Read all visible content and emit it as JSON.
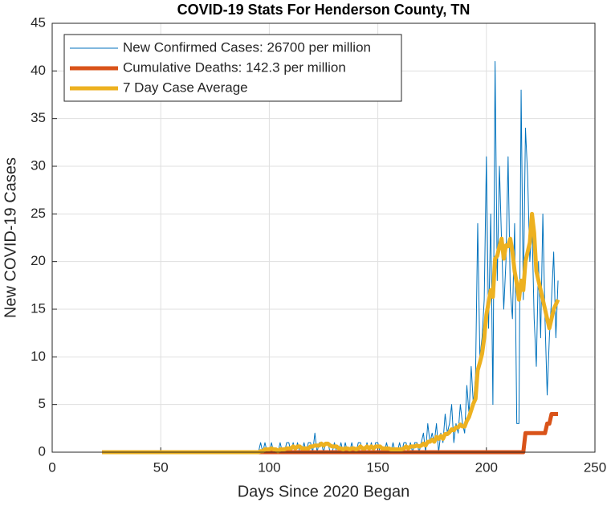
{
  "chart_data": {
    "type": "line",
    "title": "COVID-19 Stats For Henderson County, TN",
    "xlabel": "Days Since 2020 Began",
    "ylabel": "New COVID-19 Cases",
    "xlim": [
      0,
      250
    ],
    "xticks": [
      0,
      50,
      100,
      150,
      200,
      250
    ],
    "ylim": [
      0,
      45
    ],
    "yticks": [
      0,
      5,
      10,
      15,
      20,
      25,
      30,
      35,
      40,
      45
    ],
    "grid": true,
    "legend": "top-left",
    "x": [
      23,
      95,
      96,
      97,
      98,
      99,
      100,
      101,
      102,
      103,
      104,
      105,
      106,
      107,
      108,
      109,
      110,
      111,
      112,
      113,
      114,
      115,
      116,
      117,
      118,
      119,
      120,
      121,
      122,
      123,
      124,
      125,
      126,
      127,
      128,
      129,
      130,
      131,
      132,
      133,
      134,
      135,
      136,
      137,
      138,
      139,
      140,
      141,
      142,
      143,
      144,
      145,
      146,
      147,
      148,
      149,
      150,
      151,
      152,
      153,
      154,
      155,
      156,
      157,
      158,
      159,
      160,
      161,
      162,
      163,
      164,
      165,
      166,
      167,
      168,
      169,
      170,
      171,
      172,
      173,
      174,
      175,
      176,
      177,
      178,
      179,
      180,
      181,
      182,
      183,
      184,
      185,
      186,
      187,
      188,
      189,
      190,
      191,
      192,
      193,
      194,
      195,
      196,
      197,
      198,
      199,
      200,
      201,
      202,
      203,
      204,
      205,
      206,
      207,
      208,
      209,
      210,
      211,
      212,
      213,
      214,
      215,
      216,
      217,
      218,
      219,
      220,
      221,
      222,
      223,
      224,
      225,
      226,
      227,
      228,
      229,
      230,
      231,
      232,
      233
    ],
    "series": [
      {
        "name": "New Confirmed Cases: 26700 per million",
        "color": "#0072bd",
        "width": 1,
        "values": [
          0,
          0,
          1,
          0,
          1,
          0,
          0,
          1,
          0,
          0,
          0,
          1,
          0,
          0,
          1,
          1,
          0,
          1,
          0,
          1,
          0,
          0,
          1,
          0,
          1,
          1,
          0,
          2,
          0,
          1,
          1,
          0,
          1,
          1,
          0,
          0,
          1,
          0,
          0,
          1,
          0,
          1,
          0,
          0,
          1,
          0,
          0,
          1,
          1,
          0,
          0,
          1,
          0,
          1,
          0,
          1,
          1,
          0,
          0,
          0,
          1,
          0,
          0,
          1,
          0,
          0,
          1,
          0,
          1,
          1,
          0,
          1,
          0,
          1,
          1,
          0,
          1,
          2,
          0,
          3,
          1,
          2,
          1,
          3,
          0,
          2,
          1,
          4,
          2,
          3,
          5,
          1,
          3,
          2,
          5,
          3,
          2,
          7,
          4,
          9,
          5,
          8,
          24,
          10,
          12,
          16,
          31,
          13,
          25,
          5,
          41,
          18,
          30,
          22,
          15,
          20,
          31,
          17,
          14,
          24,
          3,
          3,
          38,
          16,
          34,
          29,
          20,
          24,
          14,
          9,
          20,
          12,
          25,
          14,
          6,
          12,
          16,
          21,
          12,
          18
        ]
      },
      {
        "name": "Cumulative Deaths: 142.3 per million",
        "color": "#d95319",
        "width": 5,
        "values": [
          0,
          0,
          0,
          0,
          0,
          0,
          0,
          0,
          0,
          0,
          0,
          0,
          0,
          0,
          0,
          0,
          0,
          0,
          0,
          0,
          0,
          0,
          0,
          0,
          0,
          0,
          0,
          0,
          0,
          0,
          0,
          0,
          0,
          0,
          0,
          0,
          0,
          0,
          0,
          0,
          0,
          0,
          0,
          0,
          0,
          0,
          0,
          0,
          0,
          0,
          0,
          0,
          0,
          0,
          0,
          0,
          0,
          0,
          0,
          0,
          0,
          0,
          0,
          0,
          0,
          0,
          0,
          0,
          0,
          0,
          0,
          0,
          0,
          0,
          0,
          0,
          0,
          0,
          0,
          0,
          0,
          0,
          0,
          0,
          0,
          0,
          0,
          0,
          0,
          0,
          0,
          0,
          0,
          0,
          0,
          0,
          0,
          0,
          0,
          0,
          0,
          0,
          0,
          0,
          0,
          0,
          0,
          0,
          0,
          0,
          0,
          0,
          0,
          0,
          0,
          0,
          0,
          0,
          0,
          0,
          0,
          0,
          0,
          0,
          2,
          2,
          2,
          2,
          2,
          2,
          2,
          2,
          2,
          2,
          3,
          3,
          4,
          4,
          4,
          4
        ]
      },
      {
        "name": "7 Day Case Average",
        "color": "#edb120",
        "width": 5,
        "values": [
          0,
          0,
          0.1,
          0.1,
          0.3,
          0.3,
          0.3,
          0.4,
          0.3,
          0.3,
          0.1,
          0.3,
          0.3,
          0.3,
          0.4,
          0.4,
          0.4,
          0.6,
          0.4,
          0.6,
          0.6,
          0.4,
          0.4,
          0.4,
          0.4,
          0.6,
          0.6,
          0.7,
          0.7,
          0.7,
          0.9,
          0.7,
          0.9,
          0.9,
          0.7,
          0.6,
          0.6,
          0.6,
          0.4,
          0.4,
          0.3,
          0.4,
          0.4,
          0.3,
          0.4,
          0.4,
          0.3,
          0.4,
          0.6,
          0.4,
          0.4,
          0.6,
          0.4,
          0.6,
          0.4,
          0.6,
          0.6,
          0.6,
          0.4,
          0.4,
          0.4,
          0.4,
          0.3,
          0.3,
          0.3,
          0.3,
          0.3,
          0.3,
          0.4,
          0.6,
          0.4,
          0.6,
          0.6,
          0.6,
          0.7,
          0.6,
          0.7,
          0.9,
          0.7,
          1.1,
          1.1,
          1.3,
          1.1,
          1.6,
          1.4,
          1.7,
          1.4,
          1.9,
          1.9,
          2.1,
          2.4,
          2.3,
          2.6,
          2.6,
          2.9,
          2.7,
          2.7,
          3.3,
          3.7,
          4.4,
          5.1,
          5.6,
          8.6,
          9.4,
          10.3,
          12,
          14.4,
          15.7,
          17,
          16.3,
          20.3,
          20.6,
          21.6,
          22.4,
          20.3,
          21.7,
          21.6,
          22.4,
          21,
          19,
          17.7,
          16,
          18,
          17,
          20,
          21,
          22,
          25,
          23,
          19,
          18,
          17,
          16,
          15,
          14,
          13,
          14,
          15,
          15.5,
          16
        ]
      }
    ]
  }
}
